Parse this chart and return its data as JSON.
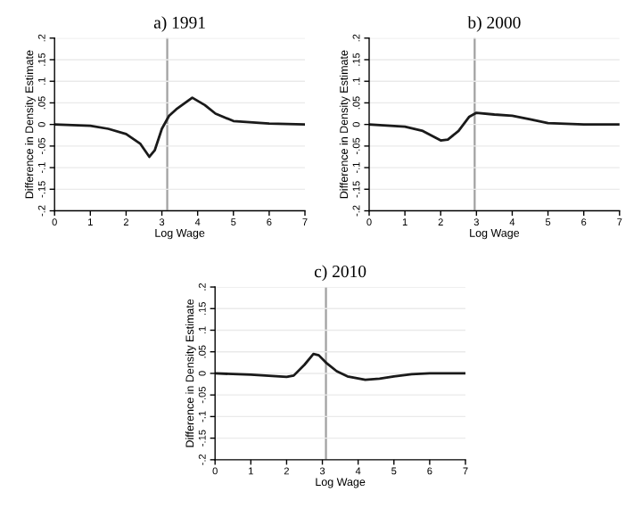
{
  "chart_data": [
    {
      "type": "line",
      "title": "a) 1991",
      "xlabel": "Log Wage",
      "ylabel": "Difference in Density Estimate",
      "x": [
        0,
        1,
        1.5,
        2,
        2.4,
        2.65,
        2.8,
        3.0,
        3.2,
        3.4,
        3.85,
        4.2,
        4.5,
        5,
        6,
        7
      ],
      "series": [
        {
          "color": "#1a1a1a",
          "values": [
            0,
            -0.003,
            -0.01,
            -0.022,
            -0.045,
            -0.075,
            -0.06,
            -0.01,
            0.02,
            0.035,
            0.062,
            0.045,
            0.025,
            0.008,
            0.002,
            0
          ]
        }
      ],
      "xlim": [
        0,
        7
      ],
      "xticks": [
        0,
        1,
        2,
        3,
        4,
        5,
        6,
        7
      ],
      "ylim": [
        -0.2,
        0.2
      ],
      "yticks": [
        {
          "value": -0.2,
          "label": "-.2"
        },
        {
          "value": -0.15,
          "label": "-.15"
        },
        {
          "value": -0.1,
          "label": "-.1"
        },
        {
          "value": -0.05,
          "label": "-.05"
        },
        {
          "value": 0,
          "label": "0"
        },
        {
          "value": 0.05,
          "label": ".05"
        },
        {
          "value": 0.1,
          "label": ".1"
        },
        {
          "value": 0.15,
          "label": ".15"
        },
        {
          "value": 0.2,
          "label": ".2"
        }
      ],
      "ref_lines": [
        {
          "axis": "x",
          "value": 3.15,
          "color": "#a0a0a0"
        }
      ],
      "grid": "y"
    },
    {
      "type": "line",
      "title": "b) 2000",
      "xlabel": "Log Wage",
      "ylabel": "Difference in Density Estimate",
      "x": [
        0,
        1,
        1.5,
        2,
        2.2,
        2.5,
        2.8,
        3.0,
        3.5,
        4,
        4.5,
        5,
        6,
        7
      ],
      "series": [
        {
          "color": "#1a1a1a",
          "values": [
            0,
            -0.005,
            -0.015,
            -0.037,
            -0.035,
            -0.015,
            0.018,
            0.027,
            0.023,
            0.02,
            0.012,
            0.003,
            0,
            0
          ]
        }
      ],
      "xlim": [
        0,
        7
      ],
      "xticks": [
        0,
        1,
        2,
        3,
        4,
        5,
        6,
        7
      ],
      "ylim": [
        -0.2,
        0.2
      ],
      "yticks": [
        {
          "value": -0.2,
          "label": "-.2"
        },
        {
          "value": -0.15,
          "label": "-.15"
        },
        {
          "value": -0.1,
          "label": "-.1"
        },
        {
          "value": -0.05,
          "label": "-.05"
        },
        {
          "value": 0,
          "label": "0"
        },
        {
          "value": 0.05,
          "label": ".05"
        },
        {
          "value": 0.1,
          "label": ".1"
        },
        {
          "value": 0.15,
          "label": ".15"
        },
        {
          "value": 0.2,
          "label": ".2"
        }
      ],
      "ref_lines": [
        {
          "axis": "x",
          "value": 2.95,
          "color": "#a0a0a0"
        }
      ],
      "grid": "y"
    },
    {
      "type": "line",
      "title": "c) 2010",
      "xlabel": "Log Wage",
      "ylabel": "Difference in Density Estimate",
      "x": [
        0,
        1,
        2,
        2.2,
        2.5,
        2.75,
        2.9,
        3.1,
        3.4,
        3.7,
        4.2,
        4.6,
        5,
        5.5,
        6,
        7
      ],
      "series": [
        {
          "color": "#1a1a1a",
          "values": [
            0,
            -0.003,
            -0.008,
            -0.005,
            0.02,
            0.045,
            0.042,
            0.025,
            0.005,
            -0.007,
            -0.015,
            -0.012,
            -0.007,
            -0.002,
            0,
            0
          ]
        }
      ],
      "xlim": [
        0,
        7
      ],
      "xticks": [
        0,
        1,
        2,
        3,
        4,
        5,
        6,
        7
      ],
      "ylim": [
        -0.2,
        0.2
      ],
      "yticks": [
        {
          "value": -0.2,
          "label": "-.2"
        },
        {
          "value": -0.15,
          "label": "-.15"
        },
        {
          "value": -0.1,
          "label": "-.1"
        },
        {
          "value": -0.05,
          "label": "-.05"
        },
        {
          "value": 0,
          "label": "0"
        },
        {
          "value": 0.05,
          "label": ".05"
        },
        {
          "value": 0.1,
          "label": ".1"
        },
        {
          "value": 0.15,
          "label": ".15"
        },
        {
          "value": 0.2,
          "label": ".2"
        }
      ],
      "ref_lines": [
        {
          "axis": "x",
          "value": 3.1,
          "color": "#a0a0a0"
        }
      ],
      "grid": "y"
    }
  ]
}
